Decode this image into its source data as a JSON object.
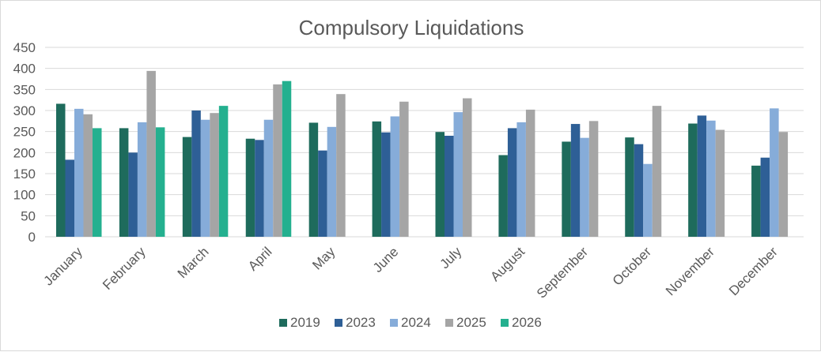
{
  "chart_data": {
    "type": "bar",
    "title": "Compulsory Liquidations",
    "xlabel": "",
    "ylabel": "",
    "ylim": [
      0,
      450
    ],
    "yticks": [
      0,
      50,
      100,
      150,
      200,
      250,
      300,
      350,
      400,
      450
    ],
    "grid": true,
    "legend_position": "bottom",
    "categories": [
      "January",
      "February",
      "March",
      "April",
      "May",
      "June",
      "July",
      "August",
      "September",
      "October",
      "November",
      "December"
    ],
    "series": [
      {
        "name": "2019",
        "color": "#1e6b5c",
        "values": [
          316,
          258,
          237,
          233,
          271,
          274,
          249,
          194,
          226,
          236,
          269,
          169
        ]
      },
      {
        "name": "2023",
        "color": "#2e5f96",
        "values": [
          183,
          200,
          300,
          230,
          205,
          248,
          240,
          258,
          268,
          220,
          288,
          188
        ]
      },
      {
        "name": "2024",
        "color": "#86acd9",
        "values": [
          304,
          272,
          278,
          278,
          261,
          286,
          296,
          272,
          235,
          173,
          276,
          305
        ]
      },
      {
        "name": "2025",
        "color": "#a5a5a5",
        "values": [
          291,
          394,
          294,
          362,
          339,
          321,
          329,
          302,
          275,
          311,
          254,
          249
        ]
      },
      {
        "name": "2026",
        "color": "#24b08f",
        "values": [
          258,
          260,
          311,
          370,
          null,
          null,
          null,
          null,
          null,
          null,
          null,
          null
        ]
      }
    ]
  }
}
